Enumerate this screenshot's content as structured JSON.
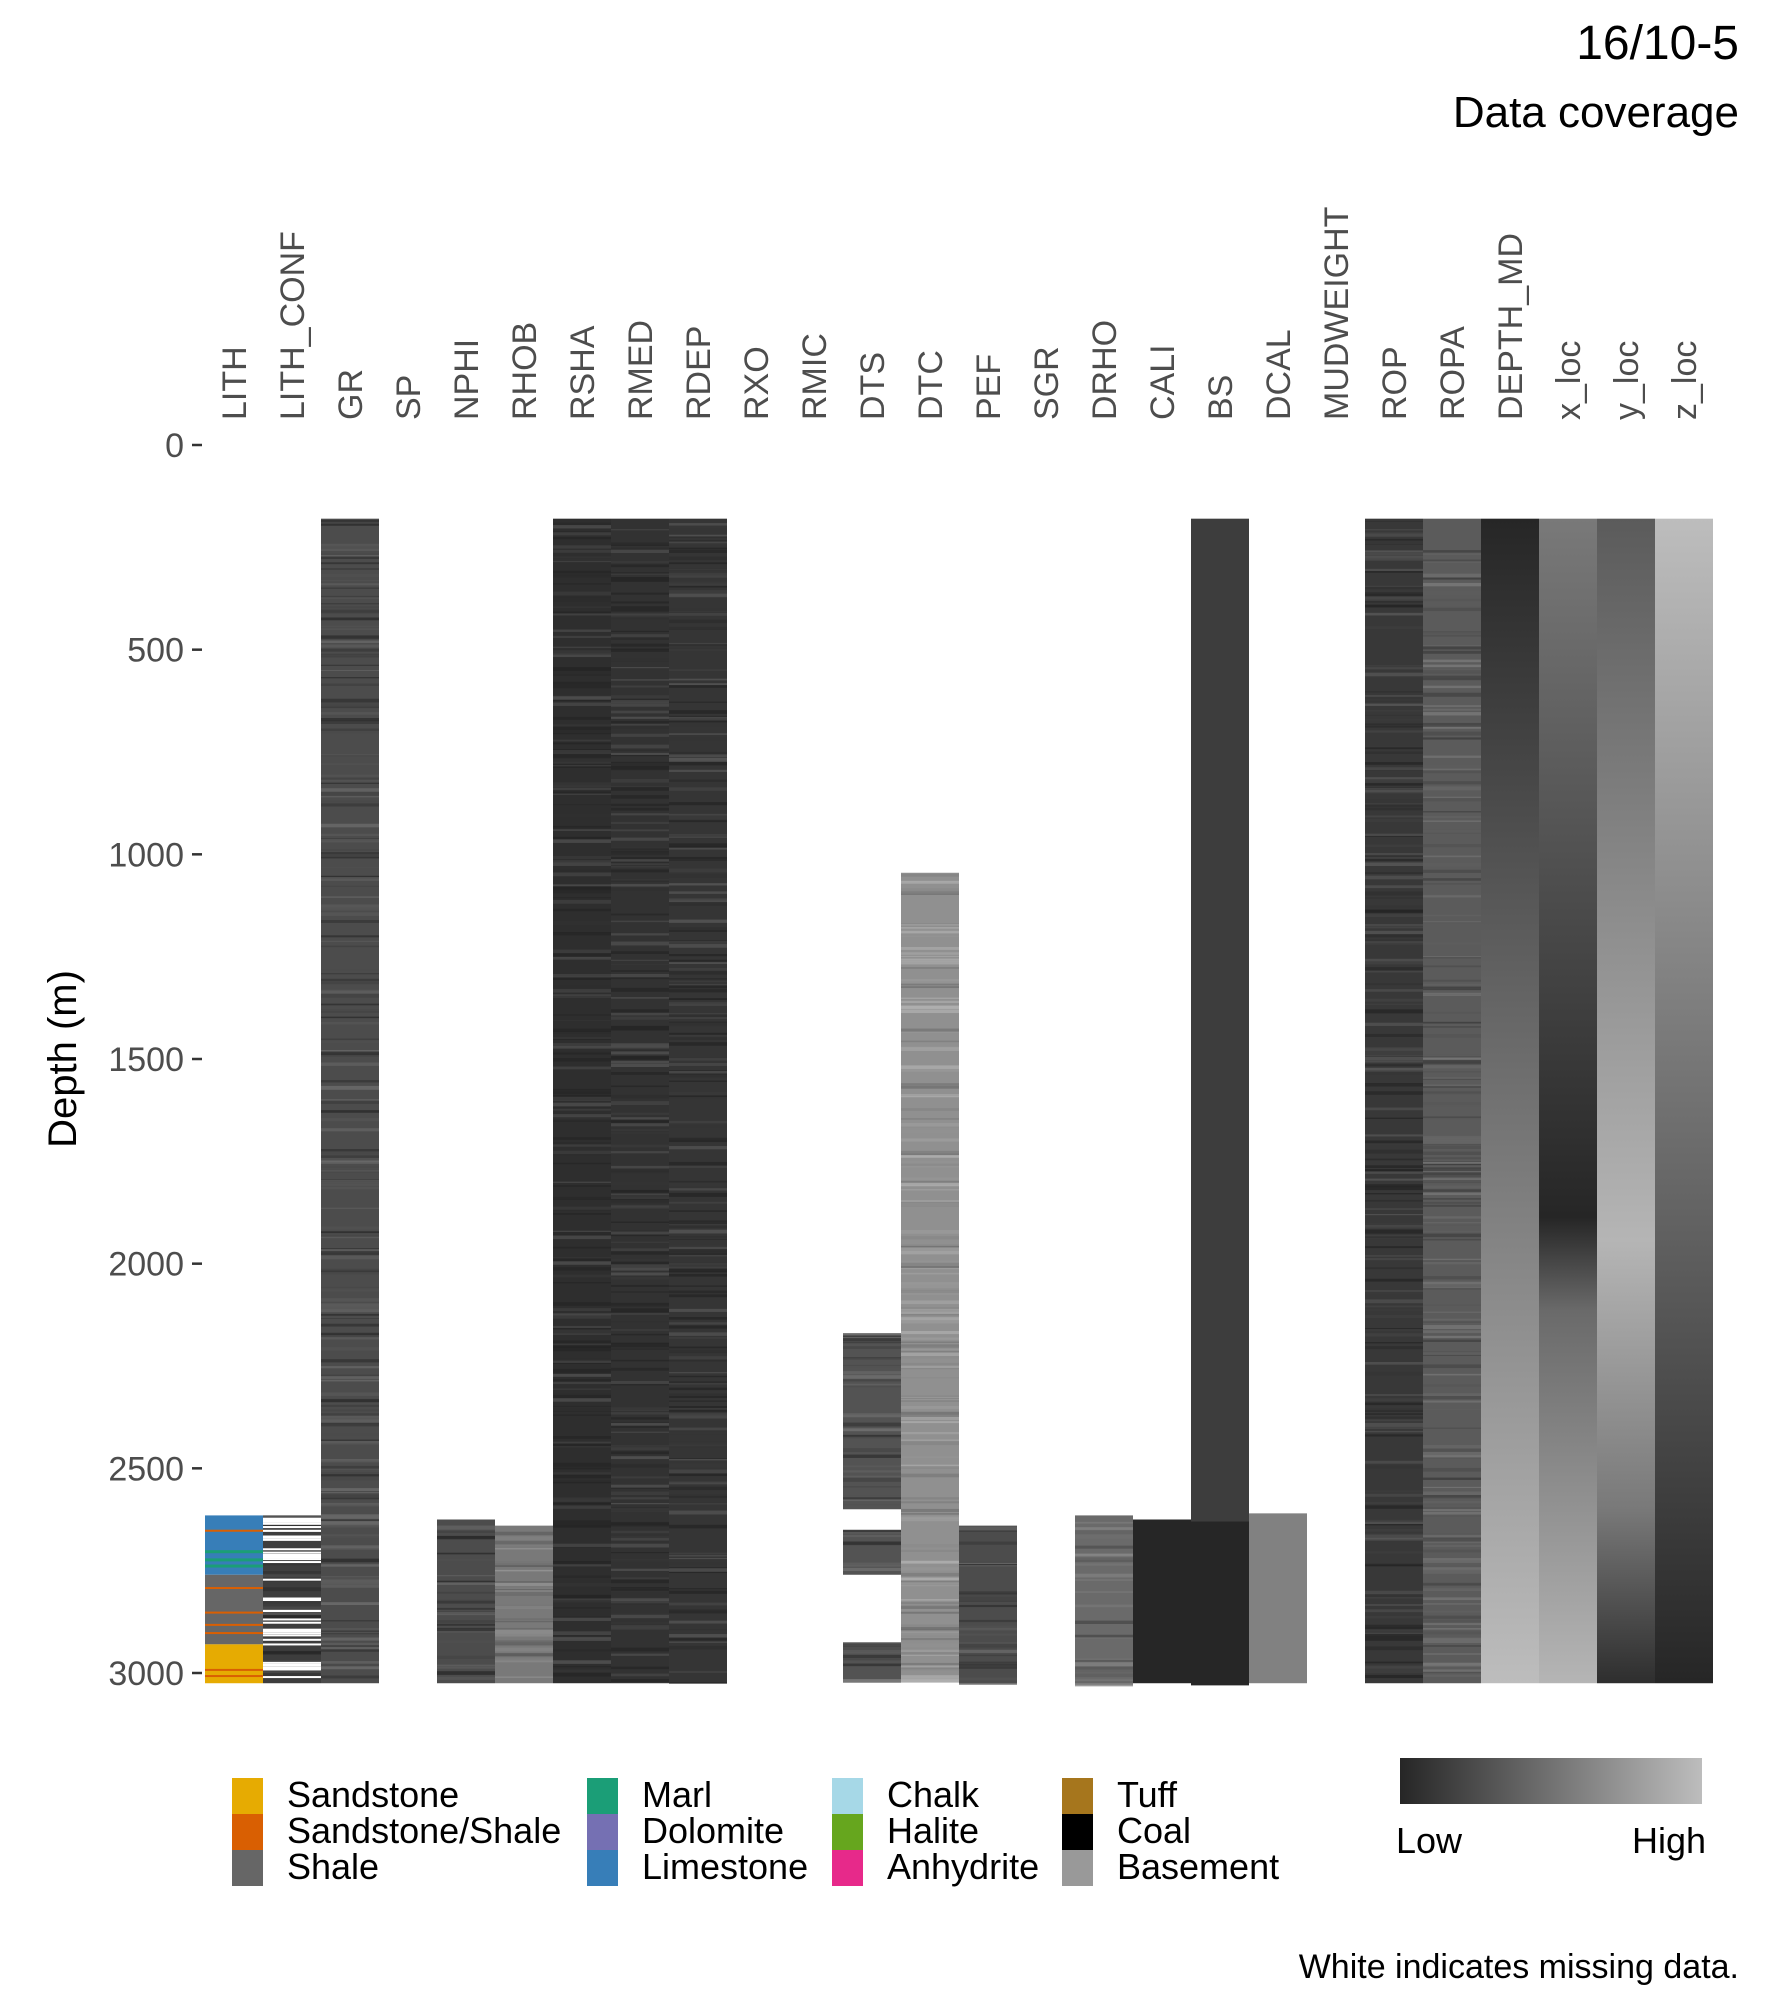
{
  "title": "16/10-5",
  "subtitle": "Data coverage",
  "caption": "White indicates missing data.",
  "colorbar": {
    "low_label": "Low",
    "high_label": "High",
    "low_color": "#262626",
    "high_color": "#bdbdbd"
  },
  "legend": {
    "columns": [
      [
        {
          "label": "Sandstone",
          "color": "#E6AB02"
        },
        {
          "label": "Sandstone/Shale",
          "color": "#D95F02"
        },
        {
          "label": "Shale",
          "color": "#666666"
        }
      ],
      [
        {
          "label": "Marl",
          "color": "#1B9E77"
        },
        {
          "label": "Dolomite",
          "color": "#7570B3"
        },
        {
          "label": "Limestone",
          "color": "#377EB8"
        }
      ],
      [
        {
          "label": "Chalk",
          "color": "#A6D8E7"
        },
        {
          "label": "Halite",
          "color": "#66A61E"
        },
        {
          "label": "Anhydrite",
          "color": "#E7298A"
        }
      ],
      [
        {
          "label": "Tuff",
          "color": "#A6761D"
        },
        {
          "label": "Coal",
          "color": "#000000"
        },
        {
          "label": "Basement",
          "color": "#999999"
        }
      ]
    ]
  },
  "chart_data": {
    "type": "heatmap",
    "ylabel": "Depth (m)",
    "y_reversed": true,
    "ylim": [
      0,
      3030
    ],
    "y_ticks": [
      0,
      500,
      1000,
      1500,
      2000,
      2500,
      3000
    ],
    "columns": [
      "LITH",
      "LITH_CONF",
      "GR",
      "SP",
      "NPHI",
      "RHOB",
      "RSHA",
      "RMED",
      "RDEP",
      "RXO",
      "RMIC",
      "DTS",
      "DTC",
      "PEF",
      "SGR",
      "DRHO",
      "CALI",
      "BS",
      "DCAL",
      "MUDWEIGHT",
      "ROP",
      "ROPA",
      "DEPTH_MD",
      "x_loc",
      "y_loc",
      "z_loc"
    ],
    "coverage": [
      {
        "column": "LITH",
        "top": 2615,
        "bottom": 3025,
        "kind": "lithology"
      },
      {
        "column": "LITH_CONF",
        "top": 2615,
        "bottom": 3025,
        "kind": "stripes",
        "base": 0.15
      },
      {
        "column": "GR",
        "top": 180,
        "bottom": 3025,
        "kind": "stripes",
        "base": 0.25
      },
      {
        "column": "NPHI",
        "top": 2625,
        "bottom": 3025,
        "kind": "stripes",
        "base": 0.25
      },
      {
        "column": "RHOB",
        "top": 2640,
        "bottom": 3025,
        "kind": "stripes",
        "base": 0.55
      },
      {
        "column": "RSHA",
        "top": 180,
        "bottom": 3025,
        "kind": "stripes",
        "base": 0.05
      },
      {
        "column": "RMED",
        "top": 180,
        "bottom": 3025,
        "kind": "stripes",
        "base": 0.08
      },
      {
        "column": "RDEP",
        "top": 180,
        "bottom": 3025,
        "kind": "stripes",
        "base": 0.1
      },
      {
        "column": "DTS",
        "top": 2170,
        "bottom": 3015,
        "kind": "stripes",
        "base": 0.3
      },
      {
        "column": "DTC",
        "top": 1045,
        "bottom": 3015,
        "kind": "stripes",
        "base": 0.7
      },
      {
        "column": "PEF",
        "top": 2640,
        "bottom": 3025,
        "kind": "stripes",
        "base": 0.25
      },
      {
        "column": "DRHO",
        "top": 2615,
        "bottom": 3025,
        "kind": "stripes",
        "base": 0.45
      },
      {
        "column": "CALI",
        "top": 2625,
        "bottom": 3025,
        "kind": "solid",
        "base": 0.0
      },
      {
        "column": "BS",
        "top": 180,
        "bottom": 3030,
        "kind": "solid",
        "base": 0.15
      },
      {
        "column": "DCAL",
        "top": 2610,
        "bottom": 3025,
        "kind": "solid",
        "base": 0.6
      },
      {
        "column": "ROP",
        "top": 180,
        "bottom": 3025,
        "kind": "stripes",
        "base": 0.12
      },
      {
        "column": "ROPA",
        "top": 180,
        "bottom": 3025,
        "kind": "stripes",
        "base": 0.35
      },
      {
        "column": "DEPTH_MD",
        "top": 180,
        "bottom": 3025,
        "kind": "gradient",
        "from": 0.0,
        "to": 1.0
      },
      {
        "column": "x_loc",
        "top": 180,
        "bottom": 3025,
        "kind": "gradient_dip",
        "from": 0.55,
        "to": 0.95
      },
      {
        "column": "y_loc",
        "top": 180,
        "bottom": 3025,
        "kind": "gradient_peak",
        "from": 0.35,
        "to": 0.05
      },
      {
        "column": "z_loc",
        "top": 180,
        "bottom": 3025,
        "kind": "gradient",
        "from": 1.0,
        "to": 0.0
      }
    ]
  }
}
